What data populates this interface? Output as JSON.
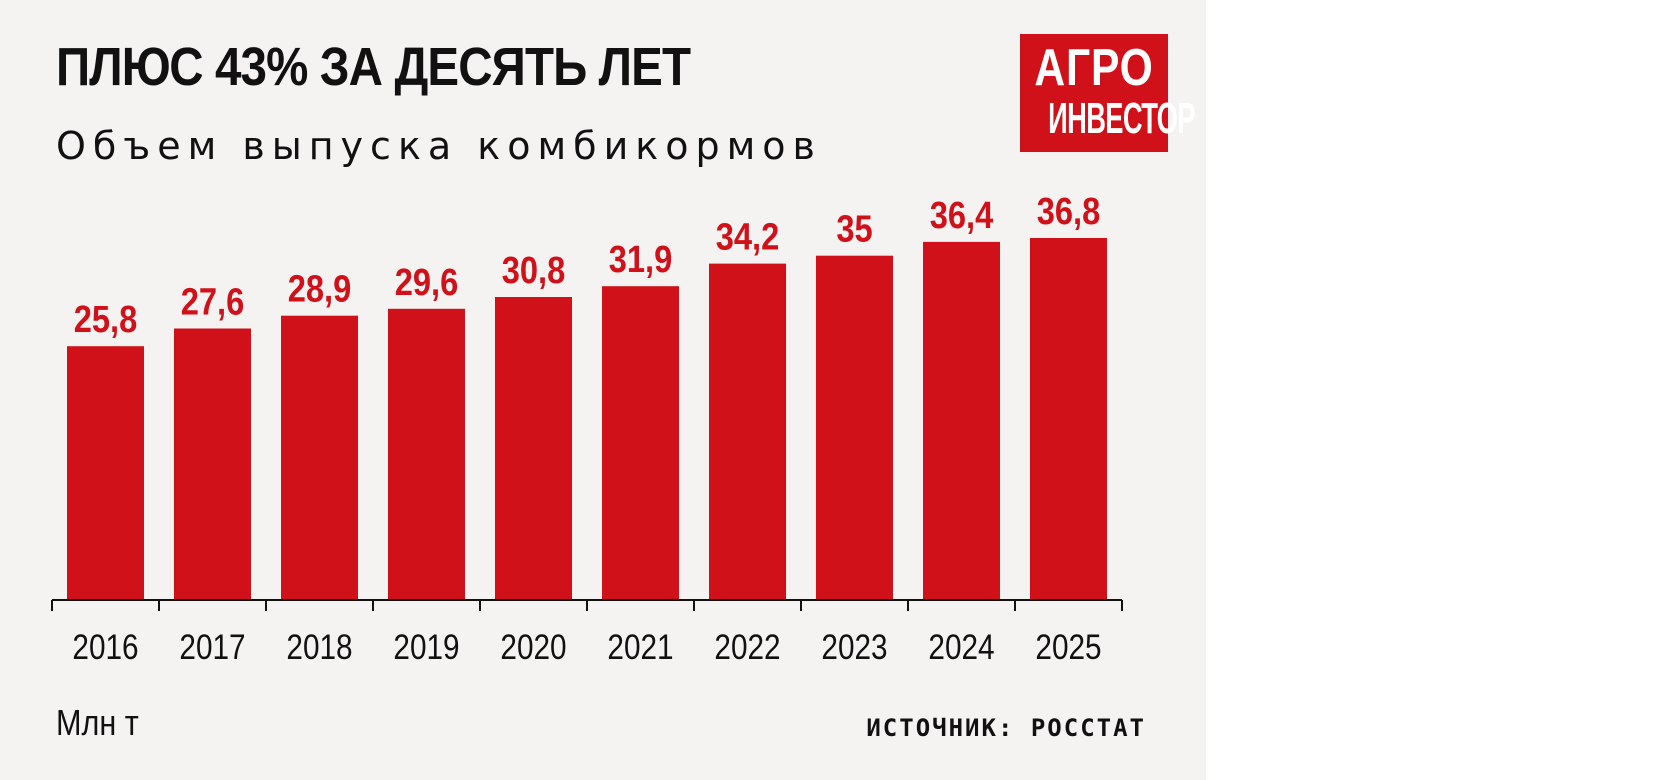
{
  "header": {
    "title": "ПЛЮС 43% ЗА ДЕСЯТЬ ЛЕТ",
    "subtitle": "Объем выпуска комбикормов"
  },
  "logo": {
    "line1": "АГРО",
    "line2": "ИНВЕСТОР",
    "color": "#d0111a"
  },
  "footer": {
    "unit": "Млн т",
    "source": "ИСТОЧНИК: РОССТАТ"
  },
  "chart_data": {
    "type": "bar",
    "categories": [
      "2016",
      "2017",
      "2018",
      "2019",
      "2020",
      "2021",
      "2022",
      "2023",
      "2024",
      "2025"
    ],
    "values": [
      25.8,
      27.6,
      28.9,
      29.6,
      30.8,
      31.9,
      34.2,
      35,
      36.4,
      36.8
    ],
    "value_labels": [
      "25,8",
      "27,6",
      "28,9",
      "29,6",
      "30,8",
      "31,9",
      "34,2",
      "35",
      "36,4",
      "36,8"
    ],
    "title": "ПЛЮС 43% ЗА ДЕСЯТЬ ЛЕТ",
    "subtitle": "Объем выпуска комбикормов",
    "ylabel": "Млн т",
    "ylim": [
      0,
      36.8
    ],
    "grid": false,
    "legend": "none",
    "bar_color": "#d0111a",
    "label_color": "#d0111a",
    "axis_color": "#111111"
  }
}
